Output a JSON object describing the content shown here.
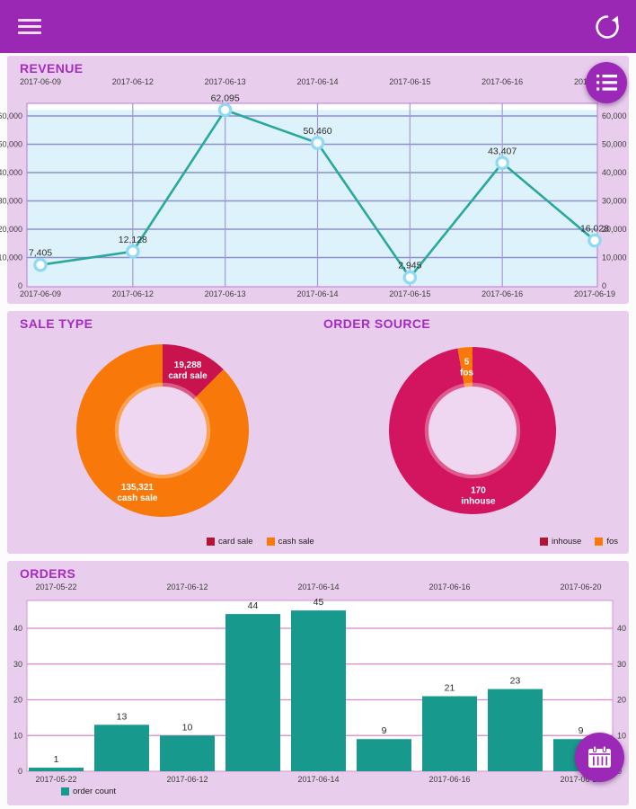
{
  "header": {
    "bg_color": "#9b28b4",
    "menu_icon": "hamburger-icon",
    "refresh_icon": "refresh-icon"
  },
  "sections": {
    "revenue": {
      "title": "REVENUE"
    },
    "sale_type": {
      "title": "SALE TYPE"
    },
    "order_source": {
      "title": "ORDER SOURCE"
    },
    "orders": {
      "title": "ORDERS"
    }
  },
  "colors": {
    "header_purple": "#9b28b4",
    "card_pink": "#e8cdec",
    "title_purple": "#a42cc2",
    "fab_purple": "#9c28b8",
    "line_teal": "#2aa89b",
    "marker_blue": "#8edaf6",
    "bar_teal": "#179a8d",
    "revenue_plot_blue": "#ddf2fb",
    "crimson": "#c9134f",
    "orange": "#f8790a",
    "donut_hole_pink": "#efd6f1"
  },
  "chart_data": [
    {
      "id": "revenue",
      "type": "line",
      "title": "REVENUE",
      "x": [
        "2017-06-09",
        "2017-06-12",
        "2017-06-13",
        "2017-06-14",
        "2017-06-15",
        "2017-06-16",
        "2017-06-19"
      ],
      "series": [
        {
          "name": "revenue",
          "values": [
            7405,
            12128,
            62095,
            50460,
            2945,
            43407,
            16028
          ],
          "labels": [
            "7,405",
            "12,128",
            "62,095",
            "50,460",
            "2,945",
            "43,407",
            "16,028"
          ],
          "color": "#2aa89b"
        }
      ],
      "ylim": [
        0,
        64800
      ],
      "yticks": [
        0,
        10000,
        20000,
        30000,
        40000,
        50000,
        60000
      ],
      "ytick_labels": [
        "0",
        "10,000",
        "20,000",
        "30,000",
        "40,000",
        "50,000",
        "60,000"
      ],
      "grid": true,
      "x_axis": "top and bottom",
      "y_axis": "left and right"
    },
    {
      "id": "sale_type",
      "type": "pie",
      "title": "SALE TYPE",
      "donut": true,
      "slices": [
        {
          "name": "card sale",
          "value": 19288,
          "value_label": "19,288",
          "color": "#c9134f"
        },
        {
          "name": "cash sale",
          "value": 135321,
          "value_label": "135,321",
          "color": "#f8790a"
        }
      ],
      "legend": [
        {
          "label": "card sale",
          "color": "#b31335"
        },
        {
          "label": "cash sale",
          "color": "#f8790a"
        }
      ],
      "legend_position": "bottom-right"
    },
    {
      "id": "order_source",
      "type": "pie",
      "title": "ORDER SOURCE",
      "donut": true,
      "slices": [
        {
          "name": "inhouse",
          "value": 170,
          "value_label": "170",
          "color": "#d2155e"
        },
        {
          "name": "fos",
          "value": 5,
          "value_label": "5",
          "color": "#f8790a"
        }
      ],
      "legend": [
        {
          "label": "inhouse",
          "color": "#b31335"
        },
        {
          "label": "fos",
          "color": "#f8790a"
        }
      ],
      "legend_position": "bottom-right"
    },
    {
      "id": "orders",
      "type": "bar",
      "title": "ORDERS",
      "values": [
        1,
        13,
        10,
        44,
        45,
        9,
        21,
        23,
        9
      ],
      "bar_labels": [
        "1",
        "13",
        "10",
        "44",
        "45",
        "9",
        "21",
        "23",
        "9"
      ],
      "x_tick_labels": [
        "2017-05-22",
        "2017-06-12",
        "2017-06-14",
        "2017-06-16",
        "2017-06-20"
      ],
      "x_tick_bar_indexes": [
        0,
        2,
        4,
        6,
        8
      ],
      "yticks": [
        0,
        10,
        20,
        30,
        40
      ],
      "ylim": [
        0,
        47
      ],
      "grid": true,
      "color": "#179a8d",
      "legend": [
        {
          "label": "order count",
          "color": "#179a8d"
        }
      ],
      "legend_position": "bottom-left"
    }
  ]
}
